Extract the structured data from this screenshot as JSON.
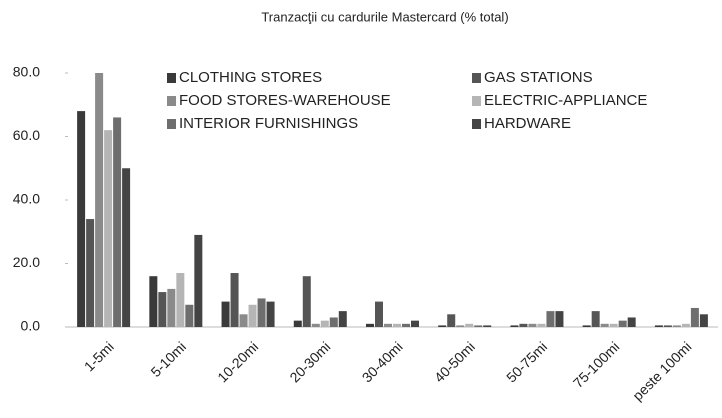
{
  "chart_data": {
    "type": "bar",
    "title": "Tranzacţii cu cardurile Mastercard (% total)",
    "categories": [
      "1-5mi",
      "5-10mi",
      "10-20mi",
      "20-30mi",
      "30-40mi",
      "40-50mi",
      "50-75mi",
      "75-100mi",
      "peste 100mi"
    ],
    "series": [
      {
        "name": "CLOTHING STORES",
        "color": "#3a3a3a",
        "values": [
          68,
          16,
          8,
          2,
          1,
          0.5,
          0.5,
          0.5,
          0.5
        ]
      },
      {
        "name": "GAS STATIONS",
        "color": "#555555",
        "values": [
          34,
          11,
          17,
          16,
          8,
          4,
          1,
          5,
          0.5
        ]
      },
      {
        "name": "FOOD STORES-WAREHOUSE",
        "color": "#8a8a8a",
        "values": [
          80,
          12,
          4,
          1,
          1,
          0.5,
          1,
          1,
          0.5
        ]
      },
      {
        "name": "ELECTRIC-APPLIANCE",
        "color": "#b5b5b5",
        "values": [
          62,
          17,
          7,
          2,
          1,
          1,
          1,
          1,
          1
        ]
      },
      {
        "name": "INTERIOR FURNISHINGS",
        "color": "#6e6e6e",
        "values": [
          66,
          7,
          9,
          3,
          1,
          0.5,
          5,
          2,
          6
        ]
      },
      {
        "name": "HARDWARE",
        "color": "#444444",
        "values": [
          50,
          29,
          8,
          5,
          2,
          0.5,
          5,
          3,
          4
        ]
      }
    ],
    "ylim": [
      0,
      80
    ],
    "yticks": [
      {
        "value": 0,
        "label": "0.0"
      },
      {
        "value": 20,
        "label": "20.0"
      },
      {
        "value": 40,
        "label": "40.0"
      },
      {
        "value": 60,
        "label": "60.0"
      },
      {
        "value": 80,
        "label": "80.0"
      }
    ]
  }
}
